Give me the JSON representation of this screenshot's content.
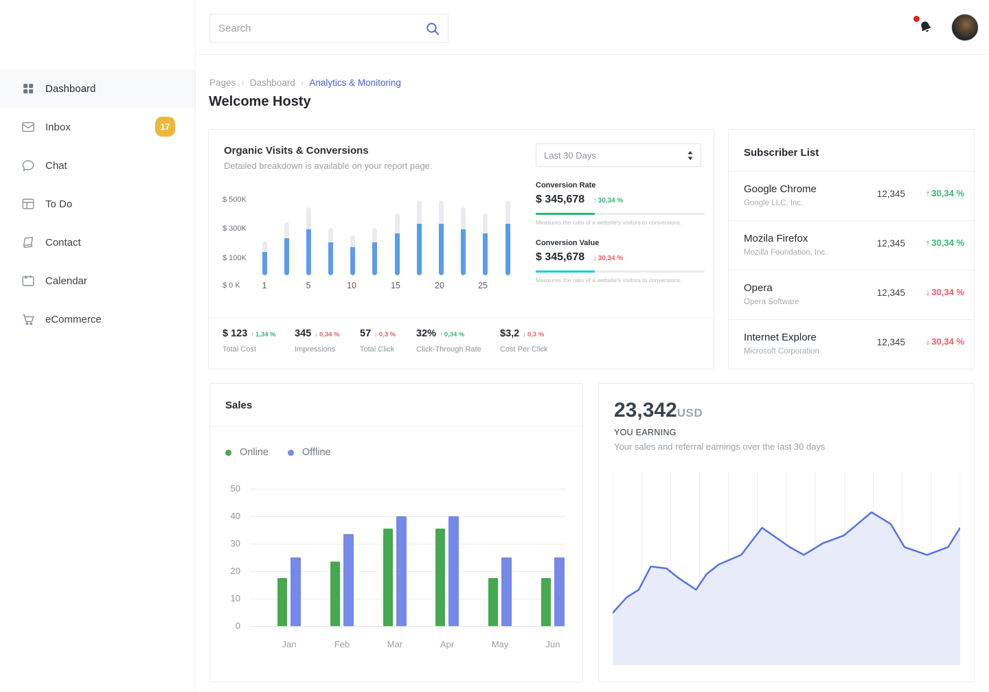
{
  "colors": {
    "accent_blue": "#4a5ce4",
    "bar_blue": "#5b9cea",
    "bar_track": "#e9ebf0",
    "green": "#2eb872",
    "red": "#ee5b63",
    "cyan": "#00cfe8",
    "sales_green": "#45a94f",
    "sales_blue": "#7589e8",
    "area_line": "#5571e2",
    "area_fill": "#e8ecfa",
    "badge_yellow": "#eeb63b"
  },
  "header": {
    "search_placeholder": "Search"
  },
  "sidebar": {
    "items": [
      {
        "label": "Dashboard",
        "icon": "dashboard-grid",
        "active": true
      },
      {
        "label": "Inbox",
        "icon": "envelope",
        "badge": "17"
      },
      {
        "label": "Chat",
        "icon": "chat-bubble"
      },
      {
        "label": "To Do",
        "icon": "layout"
      },
      {
        "label": "Contact",
        "icon": "book"
      },
      {
        "label": "Calendar",
        "icon": "calendar"
      },
      {
        "label": "eCommerce",
        "icon": "cart"
      }
    ]
  },
  "breadcrumb": {
    "items": [
      "Pages",
      "Dashboard",
      "Analytics & Monitoring"
    ]
  },
  "page": {
    "welcome": "Welcome Hosty"
  },
  "organic": {
    "title": "Organic Visits & Conversions",
    "subtitle": "Detailed breakdown is available on your report page.",
    "period": "Last 30 Days",
    "conversion_rate": {
      "label": "Conversion Rate",
      "value": "$ 345,678",
      "change": "30,34 %",
      "direction": "up",
      "bar_pct": 35,
      "caption": "Measures the ratio of a website's visitors to conversions."
    },
    "conversion_value": {
      "label": "Conversion Value",
      "value": "$ 345,678",
      "change": "30,34 %",
      "direction": "down",
      "bar_pct": 35,
      "caption": "Measures the ratio of a website's visitors to conversions."
    },
    "stats": [
      {
        "value": "$ 123",
        "change": "1,34 %",
        "direction": "up",
        "label": "Total Cost"
      },
      {
        "value": "345",
        "change": "0,34 %",
        "direction": "down",
        "label": "Impressions"
      },
      {
        "value": "57",
        "change": "0,3 %",
        "direction": "down",
        "label": "Total Click"
      },
      {
        "value": "32%",
        "change": "0,34 %",
        "direction": "up",
        "label": "Click-Through Rate"
      },
      {
        "value": "$3,2",
        "change": "0,3 %",
        "direction": "down",
        "label": "Cost Per Click"
      }
    ]
  },
  "subscribers": {
    "title": "Subscriber List",
    "rows": [
      {
        "name": "Google Chrome",
        "company": "Google LLC, Inc.",
        "count": "12,345",
        "change": "30,34 %",
        "direction": "up"
      },
      {
        "name": "Mozila Firefox",
        "company": "Mozilla Foundation, Inc.",
        "count": "12,345",
        "change": "30,34 %",
        "direction": "up"
      },
      {
        "name": "Opera",
        "company": "Opera Software",
        "count": "12,345",
        "change": "30,34 %",
        "direction": "down"
      },
      {
        "name": "Internet Explore",
        "company": "Microsoft Corporation",
        "count": "12,345",
        "change": "30,34 %",
        "direction": "down"
      }
    ]
  },
  "sales": {
    "title": "Sales",
    "legend": [
      {
        "label": "Online"
      },
      {
        "label": "Offline"
      }
    ]
  },
  "earning": {
    "amount": "23,342",
    "currency": "USD",
    "title": "YOU EARNING",
    "subtitle": "Your sales and referral earnings over the last 30 days"
  },
  "chart_data": [
    {
      "type": "bar",
      "name": "organic-visits",
      "title": "Organic Visits & Conversions",
      "ylim": [
        0,
        545
      ],
      "y_ticks": [
        "$ 500K",
        "$ 300K",
        "$ 100K",
        "$ 0 K"
      ],
      "x_ticks": [
        "1",
        "5",
        "10",
        "15",
        "20",
        "25"
      ],
      "grid": false,
      "series": [
        {
          "name": "total",
          "color": "#e9ebf0",
          "values": [
            230,
            360,
            460,
            320,
            270,
            320,
            420,
            510,
            510,
            460,
            420,
            510
          ]
        },
        {
          "name": "visits",
          "color": "#5b9cea",
          "values": [
            160,
            250,
            310,
            225,
            190,
            225,
            285,
            350,
            350,
            310,
            285,
            350
          ]
        }
      ]
    },
    {
      "type": "bar",
      "name": "sales",
      "title": "Sales",
      "categories": [
        "Jan",
        "Feb",
        "Mar",
        "Apr",
        "May",
        "Jun"
      ],
      "ylim": [
        0,
        50
      ],
      "y_ticks": [
        "50",
        "40",
        "30",
        "20",
        "10",
        "0"
      ],
      "grid": true,
      "legend_position": "top-left",
      "series": [
        {
          "name": "Online",
          "color": "#45a94f",
          "values": [
            17.5,
            23.5,
            35.5,
            35.5,
            17.5,
            17.5
          ]
        },
        {
          "name": "Offline",
          "color": "#7589e8",
          "values": [
            25,
            33.5,
            40,
            40,
            25,
            25
          ]
        }
      ]
    },
    {
      "type": "area",
      "name": "earnings",
      "title": "YOU EARNING",
      "ylim": [
        0,
        100
      ],
      "line_color": "#5571e2",
      "fill_color": "#e8ecfa",
      "gridlines": "vertical",
      "x": [
        0,
        0.04,
        0.075,
        0.11,
        0.155,
        0.19,
        0.24,
        0.27,
        0.305,
        0.37,
        0.43,
        0.51,
        0.55,
        0.605,
        0.665,
        0.745,
        0.8,
        0.84,
        0.905,
        0.965,
        1
      ],
      "values": [
        27,
        35,
        39,
        51,
        50,
        45,
        39,
        47,
        52,
        57,
        71,
        61,
        57,
        63,
        67,
        79,
        73,
        61,
        57,
        61,
        71
      ]
    }
  ]
}
